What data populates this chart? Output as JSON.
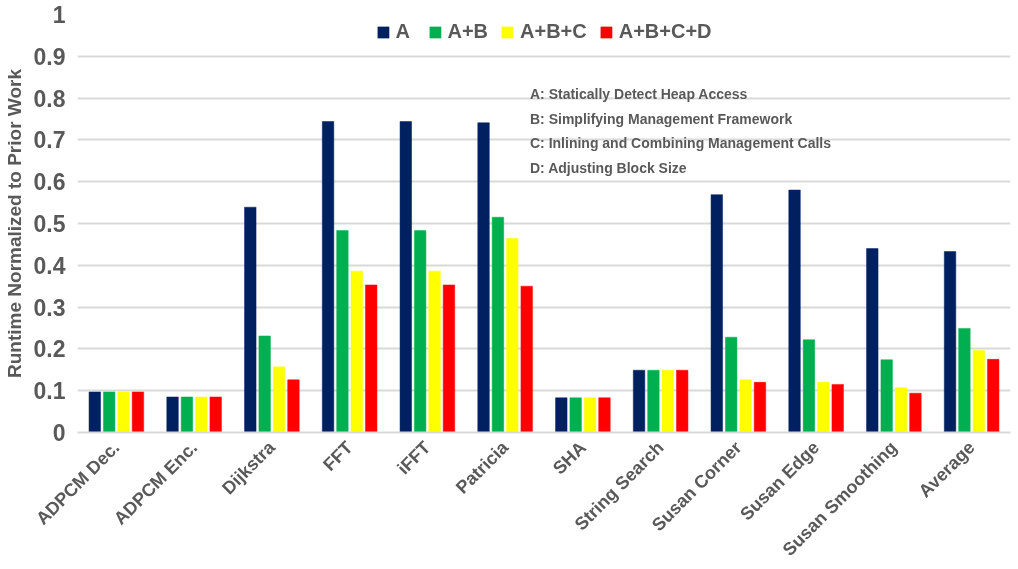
{
  "chart_data": {
    "type": "bar",
    "ylabel": "Runtime Normalized to Prior Work",
    "categories": [
      "ADPCM Dec.",
      "ADPCM Enc.",
      "Dijkstra",
      "FFT",
      "iFFT",
      "Patricia",
      "SHA",
      "String Search",
      "Susan Corner",
      "Susan Edge",
      "Susan Smoothing",
      "Average"
    ],
    "series": [
      {
        "name": "A",
        "color": "#002060",
        "values": [
          0.097,
          0.085,
          0.539,
          0.744,
          0.744,
          0.741,
          0.083,
          0.149,
          0.569,
          0.58,
          0.44,
          0.433
        ]
      },
      {
        "name": "A+B",
        "color": "#00b050",
        "values": [
          0.097,
          0.085,
          0.231,
          0.483,
          0.483,
          0.515,
          0.083,
          0.149,
          0.228,
          0.222,
          0.174,
          0.249
        ]
      },
      {
        "name": "A+B+C",
        "color": "#ffff00",
        "values": [
          0.097,
          0.085,
          0.157,
          0.386,
          0.386,
          0.464,
          0.083,
          0.149,
          0.126,
          0.12,
          0.107,
          0.196
        ]
      },
      {
        "name": "A+B+C+D",
        "color": "#ff0000",
        "values": [
          0.097,
          0.085,
          0.126,
          0.353,
          0.353,
          0.35,
          0.083,
          0.149,
          0.12,
          0.115,
          0.094,
          0.175
        ]
      }
    ],
    "annotations": [
      "A: Statically Detect Heap Access",
      "B: Simplifying Management Framework",
      "C: Inlining and Combining Management Calls",
      "D: Adjusting Block Size"
    ],
    "ylim": [
      0,
      1
    ],
    "yticks": [
      0,
      0.1,
      0.2,
      0.3,
      0.4,
      0.5,
      0.6,
      0.7,
      0.8,
      0.9,
      1
    ],
    "grid": "y",
    "legend": "top"
  }
}
